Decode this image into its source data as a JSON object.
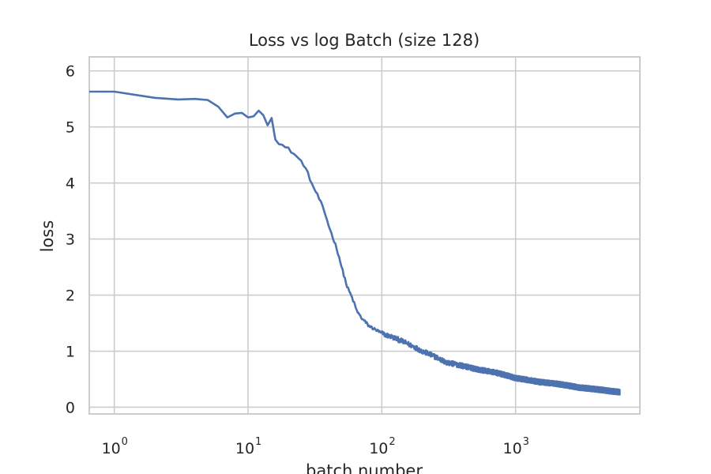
{
  "chart_data": {
    "type": "line",
    "title": "Loss vs log Batch (size 128)",
    "xlabel": "batch number",
    "ylabel": "loss",
    "x_scale": "log",
    "x_range": [
      0.65,
      8500
    ],
    "y_range": [
      -0.12,
      6.25
    ],
    "grid": true,
    "x_ticks": [
      {
        "value": 1,
        "base": "10",
        "exp": "0"
      },
      {
        "value": 10,
        "base": "10",
        "exp": "1"
      },
      {
        "value": 100,
        "base": "10",
        "exp": "2"
      },
      {
        "value": 1000,
        "base": "10",
        "exp": "3"
      }
    ],
    "y_ticks": [
      {
        "value": 0,
        "label": "0"
      },
      {
        "value": 1,
        "label": "1"
      },
      {
        "value": 2,
        "label": "2"
      },
      {
        "value": 3,
        "label": "3"
      },
      {
        "value": 4,
        "label": "4"
      },
      {
        "value": 5,
        "label": "5"
      },
      {
        "value": 6,
        "label": "6"
      }
    ],
    "series": [
      {
        "color": "#4c72b0",
        "x": [
          0,
          1,
          2,
          3,
          4,
          5,
          6,
          7,
          8,
          9,
          10,
          11,
          12,
          13,
          14,
          15,
          16,
          17,
          18,
          19,
          20,
          22,
          24,
          26,
          28,
          30,
          32,
          35,
          38,
          40,
          42,
          45,
          48,
          50,
          55,
          60,
          65,
          70,
          80,
          90,
          100,
          110,
          120,
          150,
          200,
          300,
          500,
          700,
          1000,
          1500,
          2000,
          3000,
          4000,
          5000,
          6000
        ],
        "y": [
          5.63,
          5.63,
          5.52,
          5.49,
          5.5,
          5.48,
          5.36,
          5.17,
          5.24,
          5.25,
          5.17,
          5.19,
          5.29,
          5.21,
          5.03,
          5.16,
          4.8,
          4.72,
          4.68,
          4.63,
          4.61,
          4.52,
          4.43,
          4.33,
          4.17,
          3.98,
          3.85,
          3.65,
          3.42,
          3.25,
          3.1,
          2.9,
          2.68,
          2.5,
          2.15,
          1.95,
          1.72,
          1.6,
          1.45,
          1.38,
          1.32,
          1.28,
          1.25,
          1.15,
          1.0,
          0.8,
          0.68,
          0.62,
          0.52,
          0.45,
          0.42,
          0.35,
          0.32,
          0.29,
          0.27
        ],
        "noise": 0.045
      }
    ]
  }
}
